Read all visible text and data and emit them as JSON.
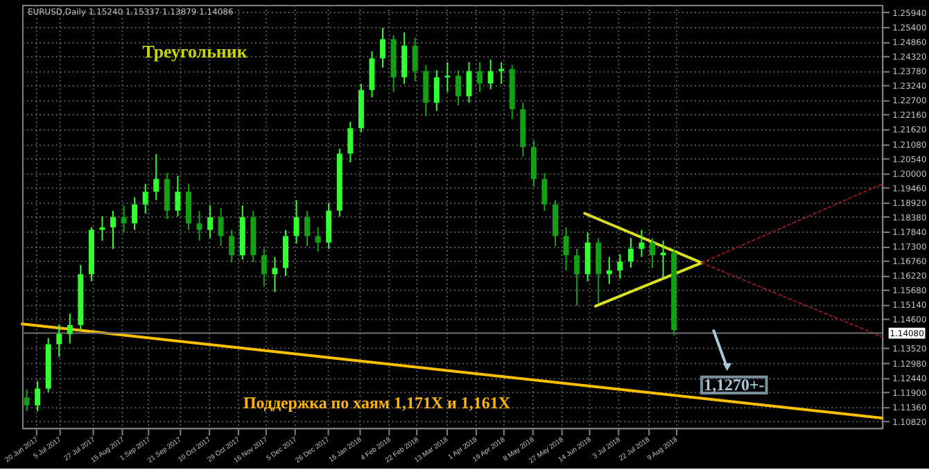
{
  "chart_data": {
    "type": "candlestick",
    "title": "EURUSD,Daily  1.15240 1.15337 1.13879 1.14086",
    "x": [
      "2017-06-14",
      "2017-06-21",
      "2017-06-28",
      "2017-07-05",
      "2017-07-12",
      "2017-07-19",
      "2017-07-26",
      "2017-08-02",
      "2017-08-09",
      "2017-08-16",
      "2017-08-23",
      "2017-08-30",
      "2017-09-06",
      "2017-09-13",
      "2017-09-20",
      "2017-09-27",
      "2017-10-04",
      "2017-10-11",
      "2017-10-18",
      "2017-10-25",
      "2017-11-01",
      "2017-11-08",
      "2017-11-15",
      "2017-11-22",
      "2017-11-29",
      "2017-12-06",
      "2017-12-13",
      "2017-12-20",
      "2017-12-27",
      "2018-01-03",
      "2018-01-10",
      "2018-01-17",
      "2018-01-24",
      "2018-01-31",
      "2018-02-07",
      "2018-02-14",
      "2018-02-21",
      "2018-02-28",
      "2018-03-07",
      "2018-03-14",
      "2018-03-21",
      "2018-03-28",
      "2018-04-04",
      "2018-04-11",
      "2018-04-18",
      "2018-04-25",
      "2018-05-02",
      "2018-05-09",
      "2018-05-16",
      "2018-05-23",
      "2018-05-30",
      "2018-06-06",
      "2018-06-13",
      "2018-06-20",
      "2018-06-27",
      "2018-07-04",
      "2018-07-11",
      "2018-07-18",
      "2018-07-25",
      "2018-08-01",
      "2018-08-08"
    ],
    "ohlc": [
      [
        1.117,
        1.12,
        1.112,
        1.1141
      ],
      [
        1.1141,
        1.123,
        1.112,
        1.1203
      ],
      [
        1.1203,
        1.139,
        1.119,
        1.1367
      ],
      [
        1.1367,
        1.144,
        1.132,
        1.1405
      ],
      [
        1.1405,
        1.148,
        1.137,
        1.1438
      ],
      [
        1.1438,
        1.166,
        1.142,
        1.1626
      ],
      [
        1.1626,
        1.18,
        1.16,
        1.179
      ],
      [
        1.179,
        1.184,
        1.175,
        1.1799
      ],
      [
        1.1799,
        1.186,
        1.172,
        1.1837
      ],
      [
        1.1837,
        1.188,
        1.178,
        1.1814
      ],
      [
        1.1814,
        1.191,
        1.179,
        1.1884
      ],
      [
        1.1884,
        1.196,
        1.185,
        1.1931
      ],
      [
        1.1931,
        1.207,
        1.19,
        1.1978
      ],
      [
        1.1978,
        1.2,
        1.183,
        1.1861
      ],
      [
        1.1861,
        1.199,
        1.184,
        1.1931
      ],
      [
        1.1931,
        1.196,
        1.179,
        1.1814
      ],
      [
        1.1814,
        1.186,
        1.175,
        1.179
      ],
      [
        1.179,
        1.188,
        1.176,
        1.1837
      ],
      [
        1.1837,
        1.187,
        1.173,
        1.1767
      ],
      [
        1.1767,
        1.179,
        1.167,
        1.1696
      ],
      [
        1.1696,
        1.188,
        1.168,
        1.1837
      ],
      [
        1.1837,
        1.186,
        1.167,
        1.1696
      ],
      [
        1.1696,
        1.172,
        1.158,
        1.1626
      ],
      [
        1.1626,
        1.169,
        1.156,
        1.1649
      ],
      [
        1.1649,
        1.179,
        1.162,
        1.1767
      ],
      [
        1.1767,
        1.19,
        1.174,
        1.1837
      ],
      [
        1.1837,
        1.186,
        1.173,
        1.1767
      ],
      [
        1.1767,
        1.18,
        1.171,
        1.1743
      ],
      [
        1.1743,
        1.189,
        1.172,
        1.1861
      ],
      [
        1.1861,
        1.209,
        1.184,
        1.2072
      ],
      [
        1.2072,
        1.219,
        1.204,
        1.2166
      ],
      [
        1.2166,
        1.233,
        1.215,
        1.2307
      ],
      [
        1.2307,
        1.245,
        1.228,
        1.2424
      ],
      [
        1.2424,
        1.2537,
        1.239,
        1.2495
      ],
      [
        1.2495,
        1.251,
        1.23,
        1.2354
      ],
      [
        1.2354,
        1.252,
        1.233,
        1.2471
      ],
      [
        1.2471,
        1.25,
        1.234,
        1.2377
      ],
      [
        1.2377,
        1.24,
        1.221,
        1.226
      ],
      [
        1.226,
        1.238,
        1.223,
        1.2354
      ],
      [
        1.2354,
        1.241,
        1.23,
        1.236
      ],
      [
        1.236,
        1.238,
        1.225,
        1.2284
      ],
      [
        1.2284,
        1.241,
        1.226,
        1.2377
      ],
      [
        1.2377,
        1.241,
        1.23,
        1.2331
      ],
      [
        1.2331,
        1.242,
        1.231,
        1.2377
      ],
      [
        1.2377,
        1.241,
        1.233,
        1.2385
      ],
      [
        1.2385,
        1.24,
        1.22,
        1.2236
      ],
      [
        1.2236,
        1.226,
        1.206,
        1.2096
      ],
      [
        1.2096,
        1.212,
        1.195,
        1.1978
      ],
      [
        1.1978,
        1.2,
        1.186,
        1.1884
      ],
      [
        1.1884,
        1.19,
        1.173,
        1.1767
      ],
      [
        1.1767,
        1.18,
        1.164,
        1.1696
      ],
      [
        1.1696,
        1.172,
        1.151,
        1.1626
      ],
      [
        1.1626,
        1.178,
        1.16,
        1.1743
      ],
      [
        1.1743,
        1.176,
        1.152,
        1.1626
      ],
      [
        1.1626,
        1.169,
        1.159,
        1.164
      ],
      [
        1.164,
        1.17,
        1.161,
        1.1673
      ],
      [
        1.1673,
        1.176,
        1.165,
        1.172
      ],
      [
        1.172,
        1.179,
        1.169,
        1.1743
      ],
      [
        1.1743,
        1.176,
        1.165,
        1.1696
      ],
      [
        1.1696,
        1.175,
        1.161,
        1.1706
      ],
      [
        1.1706,
        1.172,
        1.14,
        1.142
      ]
    ],
    "colors": [
      "#14a014",
      "#33ff33",
      "#33ff33",
      "#33ff33",
      "#33ff33",
      "#33ff33",
      "#33ff33",
      "#33ff33",
      "#33ff33",
      "#14a014",
      "#33ff33",
      "#33ff33",
      "#33ff33",
      "#14a014",
      "#33ff33",
      "#14a014",
      "#14a014",
      "#33ff33",
      "#14a014",
      "#14a014",
      "#33ff33",
      "#14a014",
      "#14a014",
      "#33ff33",
      "#33ff33",
      "#33ff33",
      "#14a014",
      "#14a014",
      "#33ff33",
      "#33ff33",
      "#33ff33",
      "#33ff33",
      "#33ff33",
      "#33ff33",
      "#14a014",
      "#33ff33",
      "#14a014",
      "#14a014",
      "#33ff33",
      "#33ff33",
      "#14a014",
      "#33ff33",
      "#14a014",
      "#33ff33",
      "#33ff33",
      "#14a014",
      "#14a014",
      "#14a014",
      "#14a014",
      "#14a014",
      "#14a014",
      "#14a014",
      "#33ff33",
      "#14a014",
      "#33ff33",
      "#33ff33",
      "#33ff33",
      "#33ff33",
      "#14a014",
      "#33ff33",
      "#14a014"
    ],
    "series": [
      {
        "type": "line",
        "x": [
          "2017-06-11",
          "2018-12-21"
        ],
        "values": [
          1.1442,
          1.1094
        ],
        "color": "#ffc000",
        "line_style": "solid"
      },
      {
        "type": "line",
        "x": [
          "2018-06-11",
          "2018-08-26"
        ],
        "values": [
          1.1851,
          1.1668
        ],
        "color": "#d8e020",
        "line_style": "solid"
      },
      {
        "type": "line",
        "x": [
          "2018-06-18",
          "2018-08-26"
        ],
        "values": [
          1.1508,
          1.1668
        ],
        "color": "#d8e020",
        "line_style": "solid"
      },
      {
        "type": "line",
        "x": [
          "2018-08-26",
          "2018-12-21"
        ],
        "values": [
          1.1668,
          1.1959
        ],
        "color": "#8b1a1a",
        "line_style": "dotted"
      },
      {
        "type": "line",
        "x": [
          "2018-08-26",
          "2018-12-21"
        ],
        "values": [
          1.1668,
          1.1395
        ],
        "color": "#8b1a1a",
        "line_style": "dotted"
      }
    ],
    "ref_lines": [
      {
        "axis": "y",
        "value": 1.1408,
        "label": "1.14080",
        "color": "#707070"
      }
    ],
    "annotations": [
      "Треугольник",
      "Поддержка по хаям 1,171X и 1,161X",
      "1,1270+-"
    ],
    "xlim": [
      "2017-06-11",
      "2018-12-21"
    ],
    "xticks": [
      {
        "value": "2017-06-20",
        "label": "20 Jun 2017"
      },
      {
        "value": "2017-07-05",
        "label": "5 Jul 2017"
      },
      {
        "value": "2017-07-27",
        "label": "27 Jul 2017"
      },
      {
        "value": "2017-08-15",
        "label": "15 Aug 2017"
      },
      {
        "value": "2017-09-01",
        "label": "1 Sep 2017"
      },
      {
        "value": "2017-09-21",
        "label": "21 Sep 2017"
      },
      {
        "value": "2017-10-10",
        "label": "10 Oct 2017"
      },
      {
        "value": "2017-10-29",
        "label": "29 Oct 2017"
      },
      {
        "value": "2017-11-16",
        "label": "16 Nov 2017"
      },
      {
        "value": "2017-12-05",
        "label": "5 Dec 2017"
      },
      {
        "value": "2017-12-26",
        "label": "26 Dec 2017"
      },
      {
        "value": "2018-01-16",
        "label": "16 Jan 2018"
      },
      {
        "value": "2018-02-04",
        "label": "4 Feb 2018"
      },
      {
        "value": "2018-02-22",
        "label": "22 Feb 2018"
      },
      {
        "value": "2018-03-13",
        "label": "13 Mar 2018"
      },
      {
        "value": "2018-04-01",
        "label": "1 Apr 2018"
      },
      {
        "value": "2018-04-19",
        "label": "19 Apr 2018"
      },
      {
        "value": "2018-05-08",
        "label": "8 May 2018"
      },
      {
        "value": "2018-05-27",
        "label": "27 May 2018"
      },
      {
        "value": "2018-06-14",
        "label": "14 Jun 2018"
      },
      {
        "value": "2018-07-03",
        "label": "3 Jul 2018"
      },
      {
        "value": "2018-07-22",
        "label": "22 Jul 2018"
      },
      {
        "value": "2018-08-09",
        "label": "9 Aug 2018"
      }
    ],
    "ylim": [
      1.1058,
      1.2622
    ],
    "yticks": [
      {
        "value": 1.2594,
        "label": "1.25940"
      },
      {
        "value": 1.254,
        "label": "1.25400"
      },
      {
        "value": 1.2486,
        "label": "1.24860"
      },
      {
        "value": 1.2432,
        "label": "1.24320"
      },
      {
        "value": 1.2378,
        "label": "1.23780"
      },
      {
        "value": 1.2324,
        "label": "1.23240"
      },
      {
        "value": 1.227,
        "label": "1.22700"
      },
      {
        "value": 1.2216,
        "label": "1.22160"
      },
      {
        "value": 1.2162,
        "label": "1.21620"
      },
      {
        "value": 1.2108,
        "label": "1.21080"
      },
      {
        "value": 1.2054,
        "label": "1.20540"
      },
      {
        "value": 1.2,
        "label": "1.20000"
      },
      {
        "value": 1.1946,
        "label": "1.19460"
      },
      {
        "value": 1.1892,
        "label": "1.18920"
      },
      {
        "value": 1.1838,
        "label": "1.18380"
      },
      {
        "value": 1.1784,
        "label": "1.17840"
      },
      {
        "value": 1.173,
        "label": "1.17300"
      },
      {
        "value": 1.1676,
        "label": "1.16760"
      },
      {
        "value": 1.1622,
        "label": "1.16220"
      },
      {
        "value": 1.1568,
        "label": "1.15680"
      },
      {
        "value": 1.1514,
        "label": "1.15140"
      },
      {
        "value": 1.146,
        "label": "1.14600"
      },
      {
        "value": 1.1352,
        "label": "1.13520"
      },
      {
        "value": 1.1298,
        "label": "1.12980"
      },
      {
        "value": 1.1244,
        "label": "1.12440"
      },
      {
        "value": 1.119,
        "label": "1.11900"
      },
      {
        "value": 1.1136,
        "label": "1.11360"
      },
      {
        "value": 1.1082,
        "label": "1.10820"
      }
    ],
    "grid": true
  }
}
